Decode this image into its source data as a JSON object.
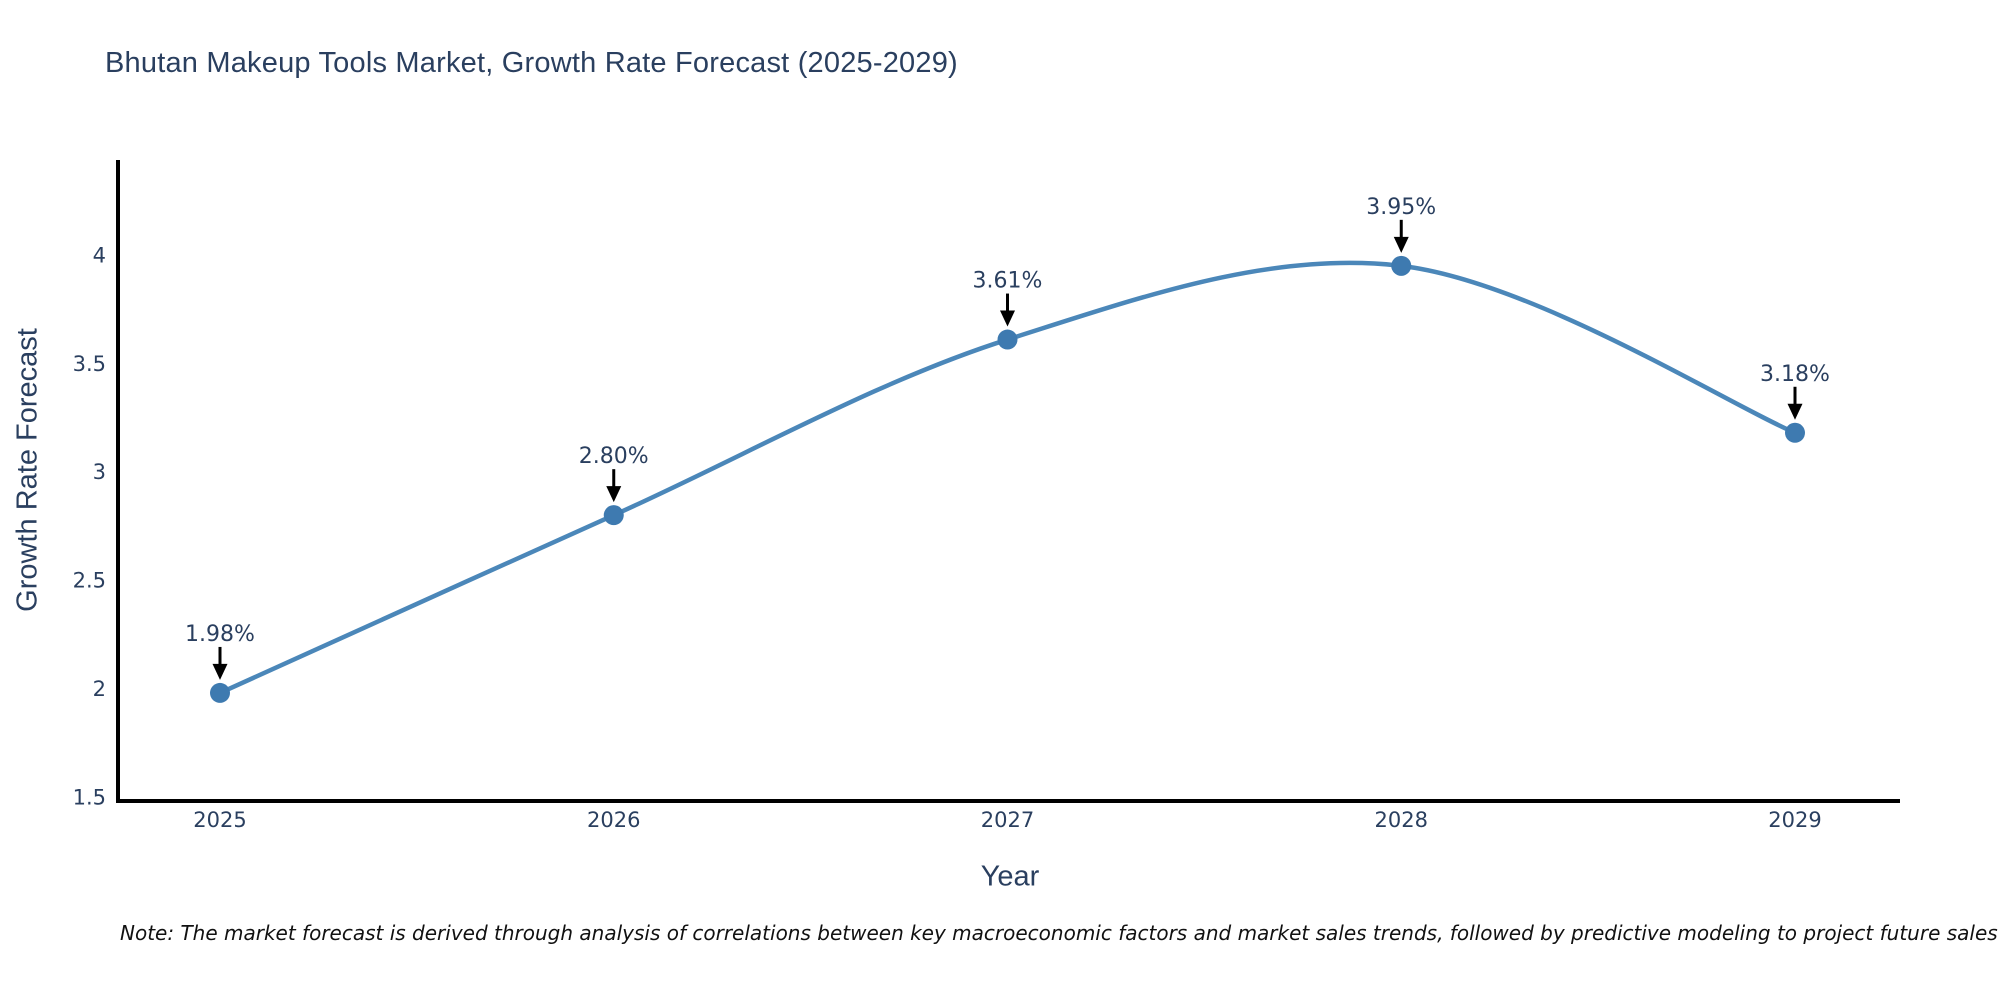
{
  "title": "Bhutan Makeup Tools Market, Growth Rate Forecast (2025-2029)",
  "note": "Note: The market forecast is derived through analysis of correlations between key macroeconomic factors and market sales trends, followed by predictive modeling to project future sales",
  "colors": {
    "line": "#4b87b9",
    "marker": "#3e7ab0",
    "axis": "#000000",
    "text": "#2a3f5f",
    "arrow": "#000000",
    "background": "#ffffff"
  },
  "chart_data": {
    "type": "line",
    "title": "Bhutan Makeup Tools Market, Growth Rate Forecast (2025-2029)",
    "xlabel": "Year",
    "ylabel": "Growth Rate Forecast",
    "x": [
      2025,
      2026,
      2027,
      2028,
      2029
    ],
    "series": [
      {
        "name": "Growth Rate Forecast",
        "values": [
          1.98,
          2.8,
          3.61,
          3.95,
          3.18
        ]
      }
    ],
    "point_labels": [
      "1.98%",
      "2.80%",
      "3.61%",
      "3.95%",
      "3.18%"
    ],
    "xticks": [
      "2025",
      "2026",
      "2027",
      "2028",
      "2029"
    ],
    "yticks": [
      1.5,
      2,
      2.5,
      3,
      3.5,
      4
    ],
    "ytick_labels": [
      "1.5",
      "2",
      "2.5",
      "3",
      "3.5",
      "4"
    ],
    "ylim": [
      1.5,
      4.45
    ],
    "line_shape": "spline",
    "markers": true,
    "annotations_arrows": true,
    "grid": false,
    "legend": false
  }
}
